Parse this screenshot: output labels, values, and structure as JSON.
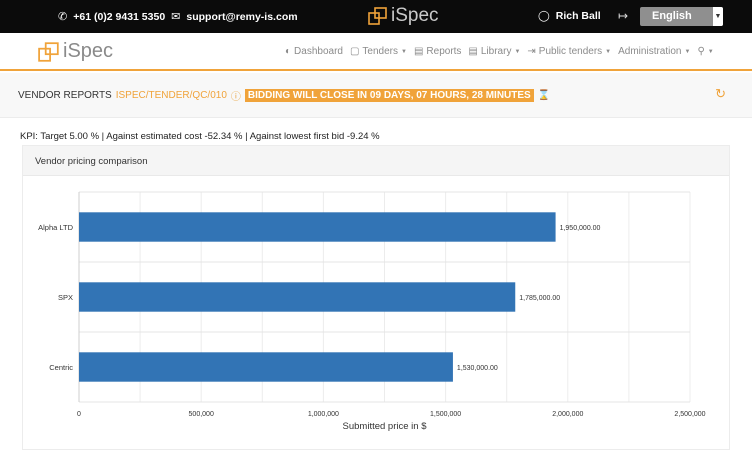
{
  "topbar": {
    "phone": "+61 (0)2 9431 5350",
    "email": "support@remy-is.com",
    "logo_text": "iSpec",
    "user_name": "Rich Ball",
    "language": "English"
  },
  "nav": {
    "logo_text": "iSpec",
    "items": [
      {
        "label": "Dashboard",
        "icon": "dashboard-icon",
        "caret": ""
      },
      {
        "label": "Tenders",
        "icon": "tenders-icon",
        "caret": "▼"
      },
      {
        "label": "Reports",
        "icon": "reports-icon",
        "caret": ""
      },
      {
        "label": "Library",
        "icon": "library-icon",
        "caret": "▼"
      },
      {
        "label": "Public tenders",
        "icon": "public-tenders-icon",
        "caret": "▼"
      },
      {
        "label": "Administration",
        "icon": "",
        "caret": "▼"
      }
    ]
  },
  "header": {
    "title": "VENDOR REPORTS",
    "code": "ISPEC/TENDER/QC/010",
    "badge": "BIDDING WILL CLOSE IN 09 DAYS, 07 HOURS, 28 MINUTES"
  },
  "kpi": "KPI: Target 5.00 % | Against estimated cost -52.34 % | Against lowest first bid -9.24 %",
  "panel": {
    "title": "Vendor pricing comparison"
  },
  "chart_data": {
    "type": "bar",
    "orientation": "horizontal",
    "categories": [
      "Alpha LTD",
      "SPX",
      "Centric"
    ],
    "values": [
      1950000,
      1785000,
      1530000
    ],
    "value_labels": [
      "1,950,000.00",
      "1,785,000.00",
      "1,530,000.00"
    ],
    "xlabel": "Submitted price in $",
    "ylabel": "",
    "xlim": [
      0,
      2500000
    ],
    "xticks": [
      0,
      500000,
      1000000,
      1500000,
      2000000,
      2500000
    ],
    "xtick_labels": [
      "0",
      "500,000",
      "1,000,000",
      "1,500,000",
      "2,000,000",
      "2,500,000"
    ],
    "grid": true,
    "bar_color": "#3274b5"
  },
  "colors": {
    "accent": "#f0a33a",
    "topbar": "#0b0b0b",
    "bar": "#3274b5"
  }
}
